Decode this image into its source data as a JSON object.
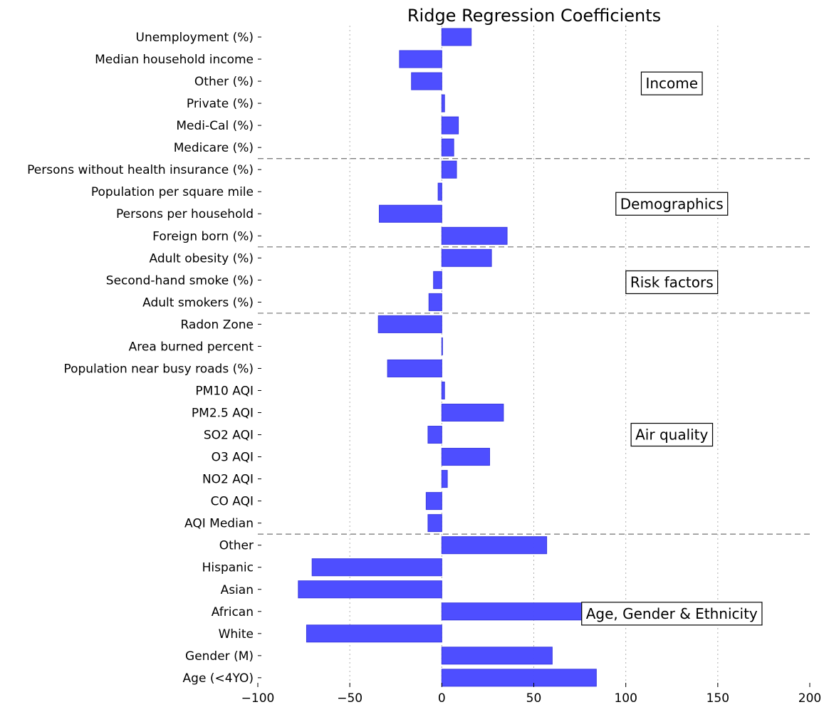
{
  "chart_data": {
    "type": "bar",
    "orientation": "horizontal",
    "title": "Ridge Regression Coefficients",
    "xlabel": "",
    "ylabel": "",
    "xlim": [
      -100,
      200
    ],
    "xticks": [
      -100,
      -50,
      0,
      50,
      100,
      150,
      200
    ],
    "xtick_labels": [
      "−100",
      "−50",
      "0",
      "50",
      "100",
      "150",
      "200"
    ],
    "grid": "vertical dotted",
    "bar_color": "#4a4aff",
    "bar_edge_color": "#3a3ae0",
    "categories": [
      "Unemployment (%)",
      "Median household income",
      "Other (%)",
      "Private (%)",
      "Medi-Cal (%)",
      "Medicare (%)",
      "Persons without health insurance (%)",
      "Population per square mile",
      "Persons per household",
      "Foreign born (%)",
      "Adult obesity (%)",
      "Second-hand smoke (%)",
      "Adult smokers (%)",
      "Radon Zone",
      "Area burned percent",
      "Population near busy roads (%)",
      "PM10 AQI",
      "PM2.5 AQI",
      "SO2 AQI",
      "O3 AQI",
      "NO2 AQI",
      "CO AQI",
      "AQI Median",
      "Other",
      "Hispanic",
      "Asian",
      "African",
      "White",
      "Gender (M)",
      "Age (<4YO)"
    ],
    "values": [
      16,
      -23,
      -16.5,
      1.5,
      9,
      6.5,
      8,
      -2,
      -34,
      35.5,
      27,
      -4.5,
      -7,
      -34.5,
      0.3,
      -29.5,
      1.5,
      33.5,
      -7.5,
      26,
      3,
      -8.5,
      -7.5,
      57,
      -70.5,
      -78,
      164,
      -73.5,
      60,
      84
    ],
    "groups": [
      {
        "label": "Income",
        "first_index": 0,
        "last_index": 5
      },
      {
        "label": "Demographics",
        "first_index": 6,
        "last_index": 9
      },
      {
        "label": "Risk factors",
        "first_index": 10,
        "last_index": 12
      },
      {
        "label": "Air quality",
        "first_index": 13,
        "last_index": 22
      },
      {
        "label": "Age, Gender & Ethnicity",
        "first_index": 23,
        "last_index": 29
      }
    ],
    "group_separators_after_index": [
      5,
      9,
      12,
      22
    ]
  }
}
